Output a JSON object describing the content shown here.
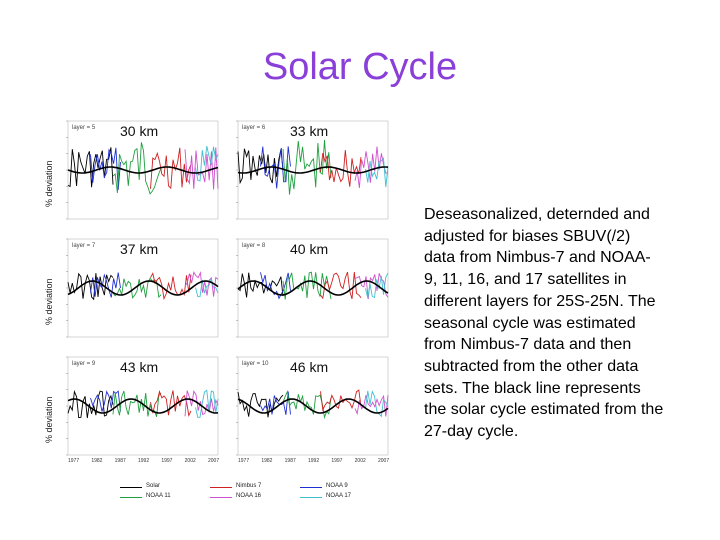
{
  "title": "Solar Cycle",
  "figure": {
    "y_axis_label": "% deviation",
    "panels": [
      {
        "label": "30 km",
        "layer": "layer = 5"
      },
      {
        "label": "33 km",
        "layer": "layer = 6"
      },
      {
        "label": "37 km",
        "layer": "layer = 7"
      },
      {
        "label": "40 km",
        "layer": "layer = 8"
      },
      {
        "label": "43 km",
        "layer": "layer = 9"
      },
      {
        "label": "46 km",
        "layer": "layer = 10"
      }
    ],
    "x_ticks": [
      "1977",
      "1982",
      "1987",
      "1992",
      "1997",
      "2002",
      "2007"
    ],
    "legend": [
      {
        "name": "Solar",
        "color": "#000000"
      },
      {
        "name": "Nimbus 7",
        "color": "#d02020"
      },
      {
        "name": "NOAA 9",
        "color": "#2030d0"
      },
      {
        "name": "NOAA 11",
        "color": "#20a040"
      },
      {
        "name": "NOAA 16",
        "color": "#d050d0"
      },
      {
        "name": "NOAA 17",
        "color": "#40c0d0"
      }
    ]
  },
  "description": "Deseasonalized, deternded and adjusted for biases SBUV(/2) data from Nimbus-7 and NOAA-9, 11, 16, and 17 satellites in different layers for 25S-25N. The seasonal cycle was estimated from Nimbus-7 data and then subtracted from the other data sets. The black line represents the solar cycle estimated from the 27-day cycle."
}
